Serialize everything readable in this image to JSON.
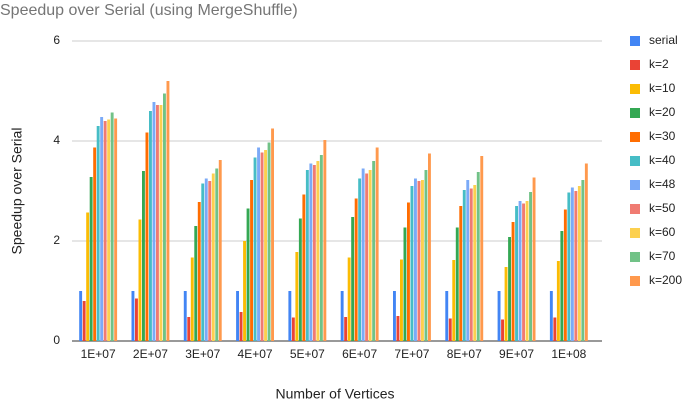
{
  "chart_data": {
    "type": "bar",
    "title": "Speedup over Serial (using MergeShuffle)",
    "x_label": "Number of Vertices",
    "y_label": "Speedup over Serial",
    "categories": [
      "1E+07",
      "2E+07",
      "3E+07",
      "4E+07",
      "5E+07",
      "6E+07",
      "7E+07",
      "8E+07",
      "9E+07",
      "1E+08"
    ],
    "series": [
      {
        "name": "serial",
        "color": "#4285f4",
        "values": [
          1.0,
          1.0,
          1.0,
          1.0,
          1.0,
          1.0,
          1.0,
          1.0,
          1.0,
          1.0
        ]
      },
      {
        "name": "k=2",
        "color": "#ea4335",
        "values": [
          0.8,
          0.85,
          0.48,
          0.58,
          0.47,
          0.48,
          0.5,
          0.45,
          0.43,
          0.47
        ]
      },
      {
        "name": "k=10",
        "color": "#fbbc04",
        "values": [
          2.57,
          2.43,
          1.67,
          2.0,
          1.78,
          1.67,
          1.63,
          1.62,
          1.48,
          1.6
        ]
      },
      {
        "name": "k=20",
        "color": "#34a853",
        "values": [
          3.28,
          3.4,
          2.3,
          2.65,
          2.45,
          2.48,
          2.27,
          2.27,
          2.08,
          2.2
        ]
      },
      {
        "name": "k=30",
        "color": "#ff6d01",
        "values": [
          3.87,
          4.17,
          2.78,
          3.22,
          2.93,
          2.85,
          2.77,
          2.7,
          2.38,
          2.63
        ]
      },
      {
        "name": "k=40",
        "color": "#46bdc6",
        "values": [
          4.3,
          4.6,
          3.15,
          3.67,
          3.42,
          3.25,
          3.1,
          3.02,
          2.7,
          2.97
        ]
      },
      {
        "name": "k=48",
        "color": "#7baaf7",
        "values": [
          4.48,
          4.78,
          3.25,
          3.87,
          3.55,
          3.45,
          3.25,
          3.22,
          2.8,
          3.07
        ]
      },
      {
        "name": "k=50",
        "color": "#f07b72",
        "values": [
          4.4,
          4.72,
          3.2,
          3.77,
          3.52,
          3.35,
          3.2,
          3.05,
          2.75,
          3.0
        ]
      },
      {
        "name": "k=60",
        "color": "#fcd04f",
        "values": [
          4.43,
          4.72,
          3.35,
          3.82,
          3.6,
          3.42,
          3.22,
          3.12,
          2.8,
          3.1
        ]
      },
      {
        "name": "k=70",
        "color": "#71c287",
        "values": [
          4.57,
          4.95,
          3.45,
          3.97,
          3.72,
          3.6,
          3.42,
          3.38,
          2.98,
          3.22
        ]
      },
      {
        "name": "k=200",
        "color": "#ff994d",
        "values": [
          4.45,
          5.2,
          3.62,
          4.25,
          4.02,
          3.87,
          3.75,
          3.7,
          3.27,
          3.55
        ]
      }
    ],
    "ylim": [
      0,
      6
    ],
    "yticks": [
      0,
      2,
      4,
      6
    ],
    "grid": true,
    "legend": "right"
  }
}
